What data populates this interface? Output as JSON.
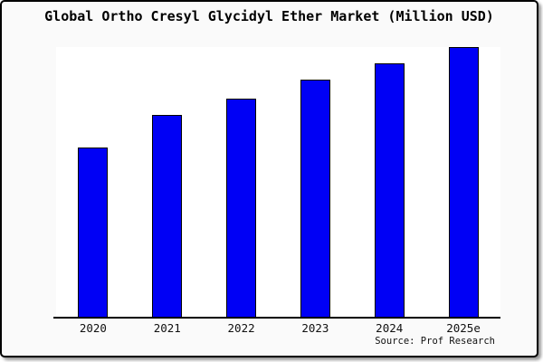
{
  "chart_data": {
    "type": "bar",
    "title": "Global Ortho Cresyl Glycidyl Ether Market (Million USD)",
    "categories": [
      "2020",
      "2021",
      "2022",
      "2023",
      "2024",
      "2025e"
    ],
    "values": [
      63,
      75,
      81,
      88,
      94,
      100
    ],
    "values_estimated_from_pixels": true,
    "xlabel": "",
    "ylabel": "",
    "ylim": [
      0,
      100
    ],
    "grid": false,
    "legend": false,
    "y_axis_shown": false,
    "bar_color": "#0000f5",
    "bar_border_color": "#000000",
    "source": "Source: Prof Research"
  }
}
